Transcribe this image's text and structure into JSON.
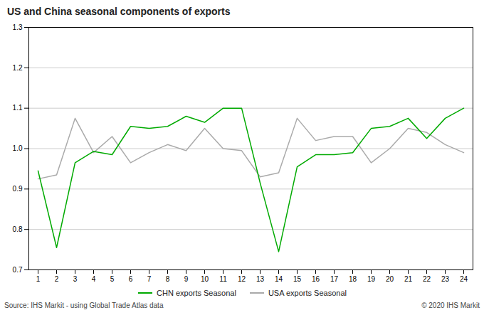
{
  "chart_data": {
    "type": "line",
    "title": "US and China  seasonal components of exports",
    "x": [
      1,
      2,
      3,
      4,
      5,
      6,
      7,
      8,
      9,
      10,
      11,
      12,
      13,
      14,
      15,
      16,
      17,
      18,
      19,
      20,
      21,
      22,
      23,
      24
    ],
    "series": [
      {
        "name": "CHN exports Seasonal",
        "color": "#00aa00",
        "values": [
          0.945,
          0.755,
          0.965,
          0.993,
          0.985,
          1.055,
          1.05,
          1.055,
          1.08,
          1.065,
          1.1,
          1.1,
          0.915,
          0.745,
          0.955,
          0.985,
          0.985,
          0.99,
          1.05,
          1.055,
          1.075,
          1.025,
          1.075,
          1.1
        ]
      },
      {
        "name": "USA exports Seasonal",
        "color": "#aaaaaa",
        "values": [
          0.925,
          0.935,
          1.075,
          0.99,
          1.03,
          0.965,
          0.99,
          1.01,
          0.995,
          1.05,
          1.0,
          0.995,
          0.93,
          0.94,
          1.075,
          1.02,
          1.03,
          1.03,
          0.965,
          1.0,
          1.05,
          1.04,
          1.01,
          0.99
        ]
      }
    ],
    "xlim": [
      0.5,
      24.5
    ],
    "xticks": [
      1,
      2,
      3,
      4,
      5,
      6,
      7,
      8,
      9,
      10,
      11,
      12,
      13,
      14,
      15,
      16,
      17,
      18,
      19,
      20,
      21,
      22,
      23,
      24
    ],
    "ylim": [
      0.7,
      1.3
    ],
    "yticks": [
      0.7,
      0.8,
      0.9,
      {
        "value": 1,
        "label": "1.0"
      },
      1.1,
      1.2,
      1.3
    ],
    "grid": "y",
    "legend": "bottom",
    "annotations": [
      "Source: IHS Markit - using Global Trade Atlas data",
      "© 2020 IHS Markit"
    ]
  }
}
